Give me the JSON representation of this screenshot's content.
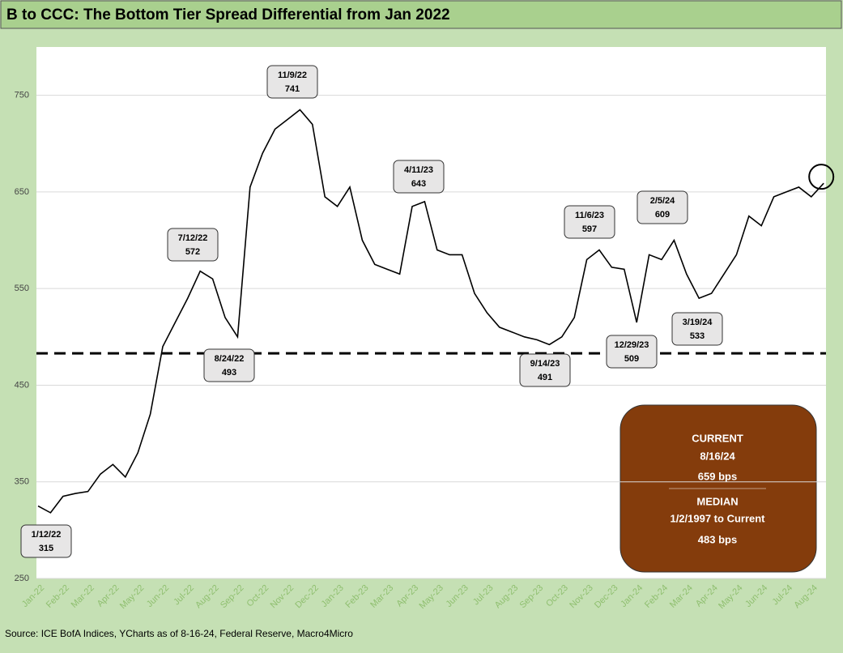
{
  "chart_data": {
    "type": "line",
    "title": "B to CCC: The Bottom Tier Spread Differential from Jan 2022",
    "source": "Source: ICE BofA Indices, YCharts as of 8-16-24, Federal Reserve, Macro4Micro",
    "categories": [
      "Jan-22",
      null,
      "Feb-22",
      null,
      "Mar-22",
      null,
      "Apr-22",
      null,
      "May-22",
      null,
      "Jun-22",
      null,
      "Jul-22",
      null,
      "Aug-22",
      null,
      "Sep-22",
      null,
      "Oct-22",
      null,
      "Nov-22",
      null,
      "Dec-22",
      null,
      "Jan-23",
      null,
      "Feb-23",
      null,
      "Mar-23",
      null,
      "Apr-23",
      null,
      "May-23",
      null,
      "Jun-23",
      null,
      "Jul-23",
      null,
      "Aug-23",
      null,
      "Sep-23",
      null,
      "Oct-23",
      null,
      "Nov-23",
      null,
      "Dec-23",
      null,
      "Jan-24",
      null,
      "Feb-24",
      null,
      "Mar-24",
      null,
      "Apr-24",
      null,
      "May-24",
      null,
      "Jun-24",
      null,
      "Jul-24",
      null,
      "Aug-24",
      null
    ],
    "series": [
      {
        "color": "#000000",
        "values": [
          325,
          318,
          335,
          338,
          340,
          358,
          368,
          355,
          380,
          420,
          490,
          515,
          540,
          568,
          560,
          520,
          500,
          655,
          690,
          715,
          725,
          735,
          720,
          645,
          635,
          655,
          600,
          575,
          570,
          565,
          635,
          640,
          590,
          585,
          585,
          545,
          525,
          510,
          505,
          500,
          497,
          492,
          500,
          520,
          580,
          590,
          572,
          570,
          515,
          585,
          580,
          600,
          565,
          540,
          545,
          565,
          585,
          625,
          615,
          645,
          650,
          655,
          645,
          659
        ]
      }
    ],
    "ylim": [
      250,
      800
    ],
    "yticks": [
      250,
      350,
      450,
      550,
      650,
      750
    ],
    "grid": true,
    "median_line": 483,
    "annotations": [
      {
        "date": "1/12/22",
        "value": 315
      },
      {
        "date": "7/12/22",
        "value": 572
      },
      {
        "date": "8/24/22",
        "value": 493
      },
      {
        "date": "11/9/22",
        "value": 741
      },
      {
        "date": "4/11/23",
        "value": 643
      },
      {
        "date": "9/14/23",
        "value": 491
      },
      {
        "date": "11/6/23",
        "value": 597
      },
      {
        "date": "12/29/23",
        "value": 509
      },
      {
        "date": "2/5/24",
        "value": 609
      },
      {
        "date": "3/19/24",
        "value": 533
      }
    ],
    "info_box": {
      "current_label": "CURRENT",
      "current_date": "8/16/24",
      "current_value": "659 bps",
      "median_label": "MEDIAN",
      "median_range": "1/2/1997 to Current",
      "median_value": "483 bps"
    }
  }
}
